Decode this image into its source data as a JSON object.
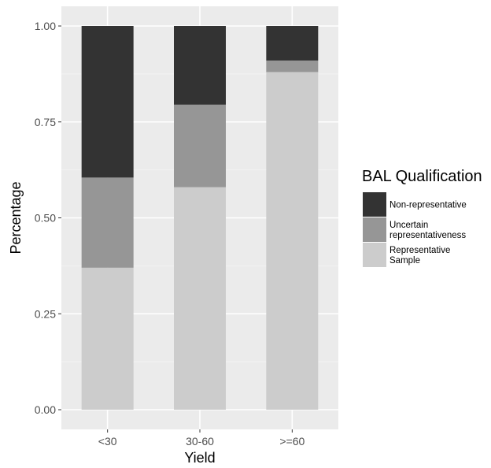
{
  "chart_data": {
    "type": "bar",
    "stacked": true,
    "title": "",
    "xlabel": "Yield",
    "ylabel": "Percentage",
    "categories": [
      "<30",
      "30-60",
      ">=60"
    ],
    "ylim": [
      0,
      1
    ],
    "yticks": [
      "0.00",
      "0.25",
      "0.50",
      "0.75",
      "1.00"
    ],
    "yticks_values": [
      0,
      0.25,
      0.5,
      0.75,
      1.0
    ],
    "grid": true,
    "legend_position": "right",
    "legend_title": "BAL Qualification",
    "series": [
      {
        "name": "Representative Sample",
        "legend_lines": [
          "Representative",
          "Sample"
        ],
        "color": "#cccccc",
        "values": [
          0.37,
          0.58,
          0.88
        ]
      },
      {
        "name": "Uncertain representativeness",
        "legend_lines": [
          "Uncertain",
          "representativeness"
        ],
        "color": "#969696",
        "values": [
          0.235,
          0.215,
          0.03
        ]
      },
      {
        "name": "Non-representative",
        "legend_lines": [
          "Non-representative"
        ],
        "color": "#333333",
        "values": [
          0.395,
          0.205,
          0.09
        ]
      }
    ],
    "legend_order": [
      2,
      1,
      0
    ]
  }
}
